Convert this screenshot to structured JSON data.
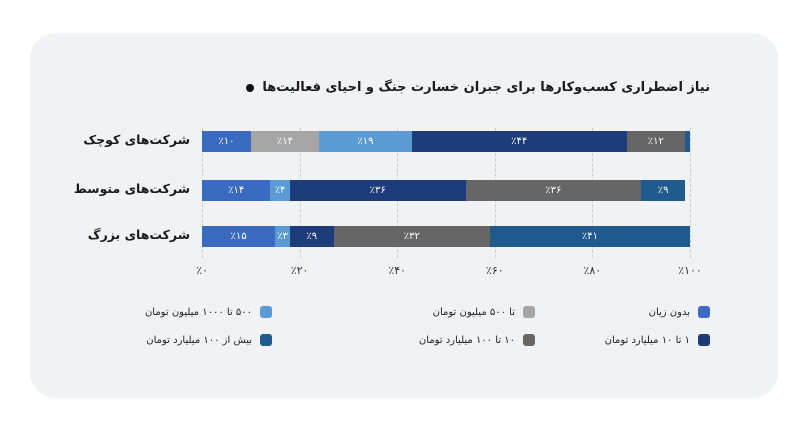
{
  "chart_data": {
    "type": "bar",
    "orientation": "horizontal",
    "stacked": true,
    "title": "نیاز اضطراری کسب‌وکارها برای جبران خسارت جنگ و احیای فعالیت‌ها",
    "categories": [
      "شرکت‌های کوچک",
      "شرکت‌های متوسط",
      "شرکت‌های بزرگ"
    ],
    "series": [
      {
        "name": "بدون زیان",
        "color": "#3b6bc0",
        "values": [
          10,
          14,
          15
        ]
      },
      {
        "name": "تا ۵۰۰ میلیون تومان",
        "color": "#a6a6a6",
        "values": [
          14,
          0,
          0
        ]
      },
      {
        "name": "۵۰۰ تا ۱۰۰۰ میلیون تومان",
        "color": "#5b9bd5",
        "values": [
          19,
          4,
          3
        ]
      },
      {
        "name": "۱ تا ۱۰ میلیارد تومان",
        "color": "#1f3c7a",
        "values": [
          44,
          36,
          9
        ]
      },
      {
        "name": "۱۰ تا ۱۰۰ میلیارد تومان",
        "color": "#666666",
        "values": [
          12,
          36,
          32
        ]
      },
      {
        "name": "بیش از ۱۰۰ میلیارد تومان",
        "color": "#215a8e",
        "values": [
          1,
          9,
          41
        ]
      }
    ],
    "segment_labels": [
      [
        "٪۱۰",
        "٪۱۴",
        "٪۱۹",
        "٪۴۴",
        "٪۱۲",
        ""
      ],
      [
        "٪۱۴",
        "",
        "٪۴",
        "٪۳۶",
        "٪۳۶",
        "٪۹"
      ],
      [
        "٪۱۵",
        "",
        "٪۳",
        "٪۹",
        "٪۳۲",
        "٪۴۱"
      ]
    ],
    "xlim": [
      0,
      100
    ],
    "xticks": [
      0,
      20,
      40,
      60,
      80,
      100
    ],
    "xtick_labels": [
      "٪۰",
      "٪۲۰",
      "٪۴۰",
      "٪۶۰",
      "٪۸۰",
      "٪۱۰۰"
    ],
    "grid": true,
    "legend_position": "bottom",
    "legend_labels": [
      "بدون زیان",
      "تا ۵۰۰ میلیون تومان",
      "۵۰۰ تا ۱۰۰۰ میلیون تومان",
      "۱ تا ۱۰ میلیارد تومان",
      "۱۰ تا ۱۰۰ میلیارد تومان",
      "بیش از ۱۰۰ میلیارد تومان"
    ]
  }
}
